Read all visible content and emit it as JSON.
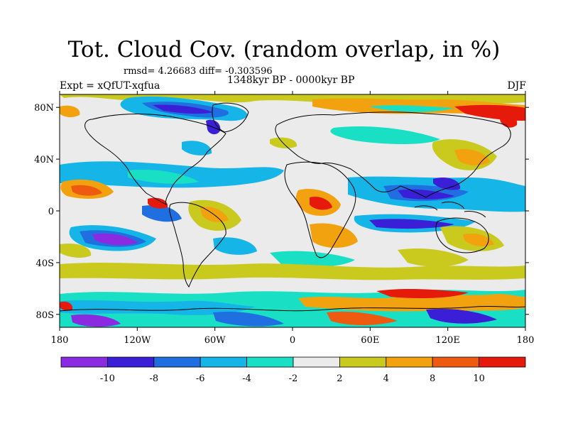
{
  "title": "Tot. Cloud Cov. (random overlap, in %)",
  "stats": "rmsd= 4.26683 diff= -0.303596",
  "experiment": "Expt = xQfUT-xqfua",
  "period": "1348kyr BP - 0000kyr BP",
  "season": "DJF",
  "lat_ticks": [
    "80N",
    "40N",
    "0",
    "40S",
    "80S"
  ],
  "lon_ticks": [
    "180",
    "120W",
    "60W",
    "0",
    "60E",
    "120E",
    "180"
  ],
  "colorbar": {
    "labels": [
      "-10",
      "-8",
      "-6",
      "-4",
      "-2",
      "2",
      "4",
      "8",
      "10"
    ],
    "colors": [
      "#8a2be2",
      "#3a1fd6",
      "#1f6fe0",
      "#16b5e8",
      "#19e0c4",
      "#ebebeb",
      "#c9c91e",
      "#f2a20f",
      "#ee5a10",
      "#e61a0a"
    ]
  }
}
